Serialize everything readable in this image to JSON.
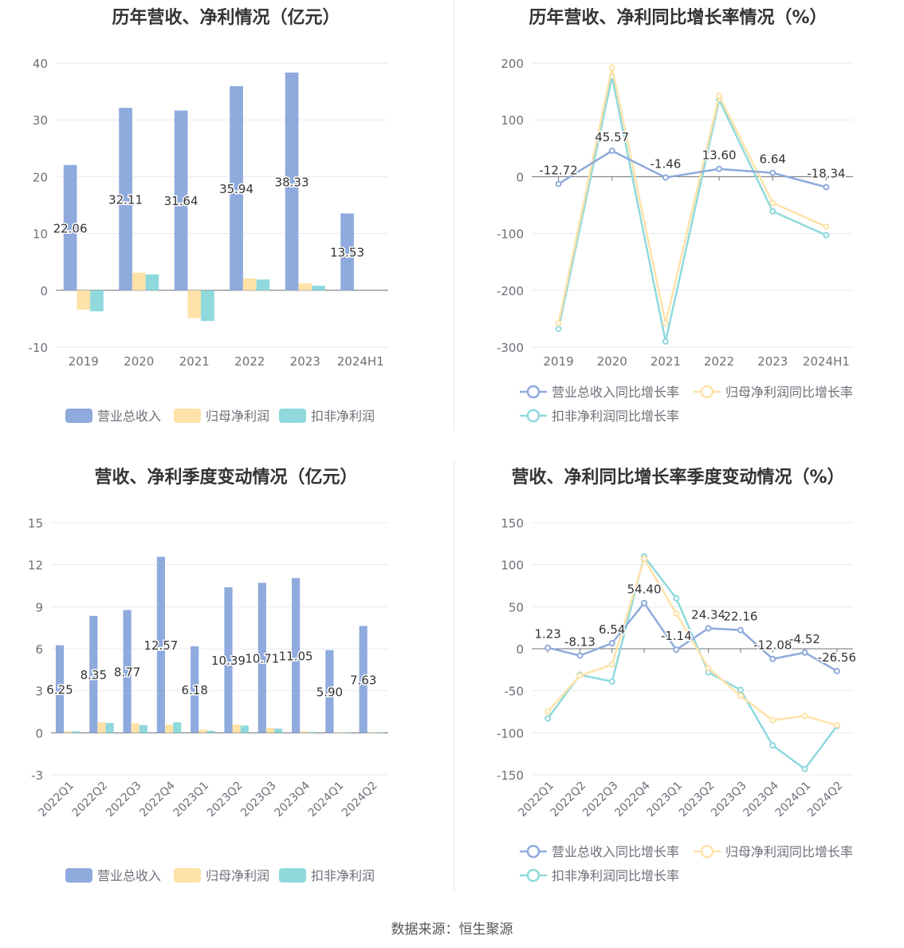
{
  "colors": {
    "revenue": "#8faadc",
    "parent_profit": "#ffe2a8",
    "deducted_profit": "#8fd9dc",
    "grid": "#e6e9f0",
    "axis_text": "#6e7079",
    "label_text": "#333333",
    "axis_line": "#6e7079"
  },
  "source": "数据来源：恒生聚源",
  "chart_data": [
    {
      "id": "annual-amount",
      "type": "bar",
      "title": "历年营收、净利情况（亿元）",
      "categories": [
        "2019",
        "2020",
        "2021",
        "2022",
        "2023",
        "2024H1"
      ],
      "ylim": [
        -10,
        40
      ],
      "yticks": [
        "-10",
        "0",
        "10",
        "20",
        "30",
        "40"
      ],
      "series": [
        {
          "name": "营业总收入",
          "values": [
            22.06,
            32.11,
            31.64,
            35.94,
            38.33,
            13.53
          ],
          "labels": [
            "22.06",
            "32.11",
            "31.64",
            "35.94",
            "38.33",
            "13.53"
          ]
        },
        {
          "name": "归母净利润",
          "values": [
            -3.4,
            3.1,
            -4.9,
            2.1,
            1.2,
            0
          ]
        },
        {
          "name": "扣非净利润",
          "values": [
            -3.7,
            2.8,
            -5.4,
            1.9,
            0.8,
            0
          ]
        }
      ],
      "grid": true,
      "legend": "bottom"
    },
    {
      "id": "annual-growth",
      "type": "line",
      "title": "历年营收、净利同比增长率情况（%）",
      "categories": [
        "2019",
        "2020",
        "2021",
        "2022",
        "2023",
        "2024H1"
      ],
      "ylim": [
        -300,
        200
      ],
      "yticks": [
        "-300",
        "-200",
        "-100",
        "0",
        "100",
        "200"
      ],
      "series": [
        {
          "name": "营业总收入同比增长率",
          "values": [
            -12.72,
            45.57,
            -1.46,
            13.6,
            6.64,
            -18.34
          ],
          "labels": [
            "-12.72",
            "45.57",
            "-1.46",
            "13.60",
            "6.64",
            "-18.34"
          ]
        },
        {
          "name": "归母净利润同比增长率",
          "values": [
            -258,
            192,
            -258,
            142,
            -46,
            -88
          ]
        },
        {
          "name": "扣非净利润同比增长率",
          "values": [
            -268,
            176,
            -290,
            135,
            -61,
            -103
          ]
        }
      ],
      "grid": true,
      "legend": "bottom"
    },
    {
      "id": "quarterly-amount",
      "type": "bar",
      "title": "营收、净利季度变动情况（亿元）",
      "categories": [
        "2022Q1",
        "2022Q2",
        "2022Q3",
        "2022Q4",
        "2023Q1",
        "2023Q2",
        "2023Q3",
        "2023Q4",
        "2024Q1",
        "2024Q2"
      ],
      "ylim": [
        -3,
        15
      ],
      "yticks": [
        "-3",
        "0",
        "3",
        "6",
        "9",
        "12",
        "15"
      ],
      "series": [
        {
          "name": "营业总收入",
          "values": [
            6.25,
            8.35,
            8.77,
            12.57,
            6.18,
            10.39,
            10.71,
            11.05,
            5.9,
            7.63
          ],
          "labels": [
            "6.25",
            "8.35",
            "8.77",
            "12.57",
            "6.18",
            "10.39",
            "10.71",
            "11.05",
            "5.90",
            "7.63"
          ]
        },
        {
          "name": "归母净利润",
          "values": [
            0.12,
            0.75,
            0.68,
            0.58,
            0.22,
            0.6,
            0.35,
            0.1,
            0.04,
            0.03
          ]
        },
        {
          "name": "扣非净利润",
          "values": [
            0.1,
            0.7,
            0.55,
            0.75,
            0.15,
            0.52,
            0.3,
            0.05,
            0.02,
            0.02
          ]
        }
      ],
      "grid": true,
      "legend": "bottom"
    },
    {
      "id": "quarterly-growth",
      "type": "line",
      "title": "营收、净利同比增长率季度变动情况（%）",
      "categories": [
        "2022Q1",
        "2022Q2",
        "2022Q3",
        "2022Q4",
        "2023Q1",
        "2023Q2",
        "2023Q3",
        "2023Q4",
        "2024Q1",
        "2024Q2"
      ],
      "ylim": [
        -150,
        150
      ],
      "yticks": [
        "-150",
        "-100",
        "-50",
        "0",
        "50",
        "100",
        "150"
      ],
      "series": [
        {
          "name": "营业总收入同比增长率",
          "values": [
            1.23,
            -8.13,
            6.54,
            54.4,
            -1.14,
            24.34,
            22.16,
            -12.08,
            -4.52,
            -26.56
          ],
          "labels": [
            "1.23",
            "-8.13",
            "6.54",
            "54.40",
            "-1.14",
            "24.34",
            "22.16",
            "-12.08",
            "-4.52",
            "-26.56"
          ]
        },
        {
          "name": "归母净利润同比增长率",
          "values": [
            -75,
            -32,
            -19,
            107,
            42,
            -23,
            -56,
            -85,
            -80,
            -91
          ]
        },
        {
          "name": "扣非净利润同比增长率",
          "values": [
            -83,
            -31,
            -39,
            110,
            60,
            -28,
            -49,
            -115,
            -143,
            -92
          ]
        }
      ],
      "grid": true,
      "legend": "bottom"
    }
  ]
}
